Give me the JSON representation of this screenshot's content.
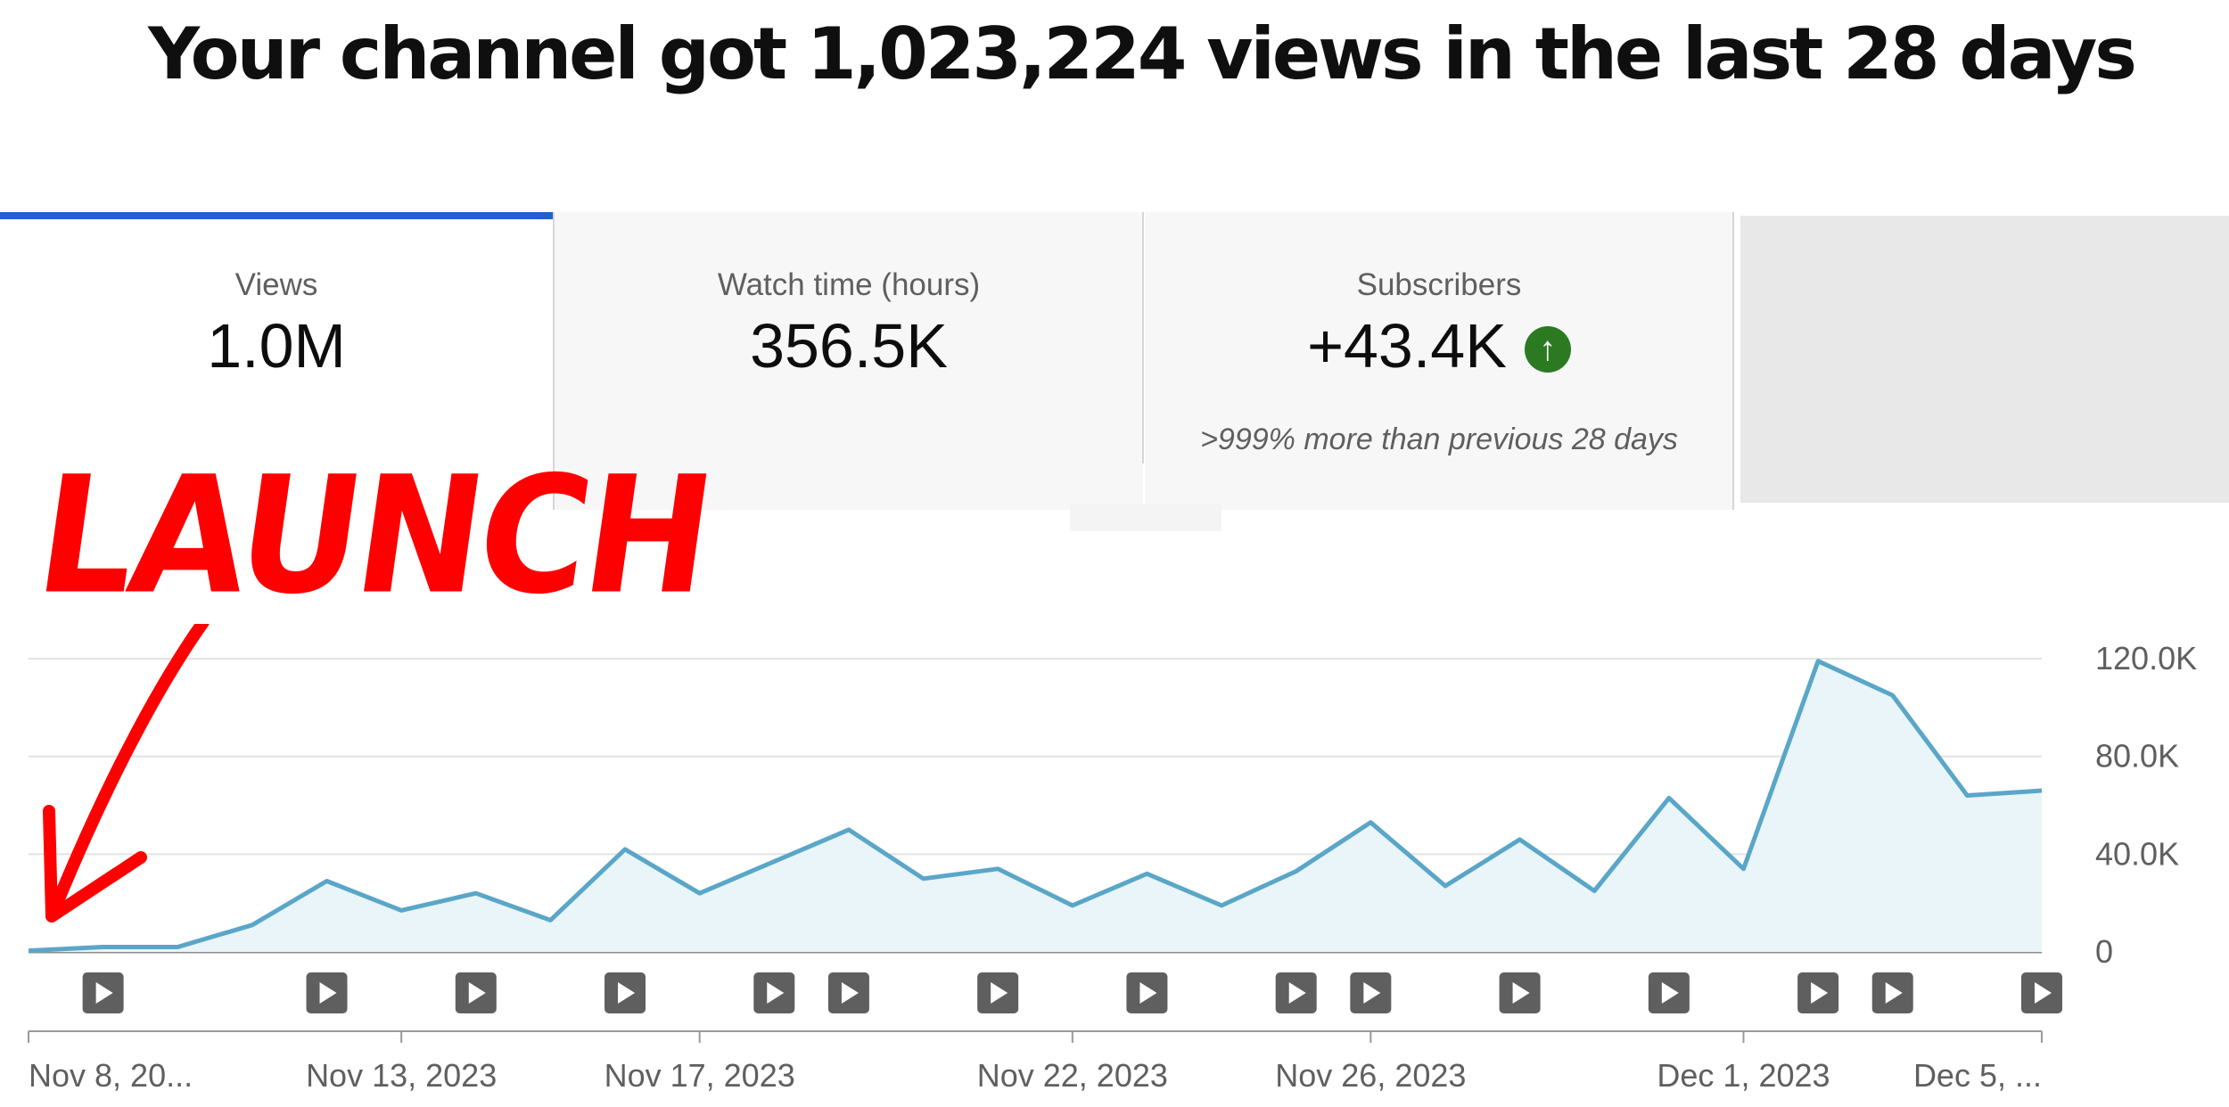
{
  "headline": "Your channel got 1,023,224 views in the last 28 days",
  "metrics": [
    {
      "label": "Views",
      "value": "1.0M"
    },
    {
      "label": "Watch time (hours)",
      "value": "356.5K"
    },
    {
      "label": "Subscribers",
      "value": "+43.4K",
      "comparison": ">999% more than previous 28 days",
      "trend_icon": "arrow-up-circle-icon"
    }
  ],
  "annotation": {
    "text": "LAUNCH",
    "arrow_icon": "hand-drawn-arrow-icon",
    "color": "#ff0000"
  },
  "colors": {
    "accent": "#2060d0",
    "line": "#5aa6c8",
    "area": "#e9f5f8",
    "positive": "#2b7a22"
  },
  "chart_data": {
    "type": "area",
    "x": [
      "2023-11-08",
      "2023-11-09",
      "2023-11-10",
      "2023-11-11",
      "2023-11-12",
      "2023-11-13",
      "2023-11-14",
      "2023-11-15",
      "2023-11-16",
      "2023-11-17",
      "2023-11-18",
      "2023-11-19",
      "2023-11-20",
      "2023-11-21",
      "2023-11-22",
      "2023-11-23",
      "2023-11-24",
      "2023-11-25",
      "2023-11-26",
      "2023-11-27",
      "2023-11-28",
      "2023-11-29",
      "2023-11-30",
      "2023-12-01",
      "2023-12-02",
      "2023-12-03",
      "2023-12-04",
      "2023-12-05"
    ],
    "series": [
      {
        "values": [
          500,
          2000,
          2000,
          11000,
          29000,
          17000,
          24000,
          13000,
          42000,
          24000,
          37000,
          50000,
          30000,
          34000,
          19000,
          32000,
          19000,
          33000,
          53000,
          27000,
          46000,
          25000,
          63000,
          34000,
          119000,
          105000,
          64000,
          66000
        ]
      }
    ],
    "x_tick_labels": [
      "Nov 8, 20...",
      "Nov 13, 2023",
      "Nov 17, 2023",
      "Nov 22, 2023",
      "Nov 26, 2023",
      "Dec 1, 2023",
      "Dec 5, ..."
    ],
    "x_tick_dates": [
      "2023-11-08",
      "2023-11-13",
      "2023-11-17",
      "2023-11-22",
      "2023-11-26",
      "2023-12-01",
      "2023-12-05"
    ],
    "y_tick_labels": [
      "0",
      "40.0K",
      "80.0K",
      "120.0K"
    ],
    "y_ticks": [
      0,
      40000,
      80000,
      120000
    ],
    "ylim": [
      0,
      120000
    ],
    "grid": true,
    "y_axis_side": "right",
    "video_markers": [
      "2023-11-09",
      "2023-11-12",
      "2023-11-14",
      "2023-11-16",
      "2023-11-18",
      "2023-11-19",
      "2023-11-21",
      "2023-11-23",
      "2023-11-25",
      "2023-11-26",
      "2023-11-28",
      "2023-11-30",
      "2023-12-02",
      "2023-12-03",
      "2023-12-05"
    ]
  }
}
